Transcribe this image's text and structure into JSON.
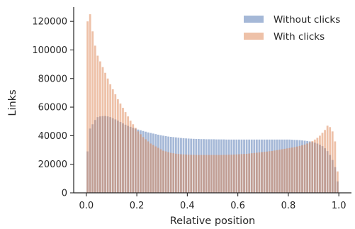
{
  "chart_data": {
    "type": "bar",
    "title": "",
    "xlabel": "Relative position",
    "ylabel": "Links",
    "xlim": [
      -0.05,
      1.05
    ],
    "ylim": [
      0,
      130000
    ],
    "xticks": [
      0.0,
      0.2,
      0.4,
      0.6,
      0.8,
      1.0
    ],
    "xtick_labels": [
      "0.0",
      "0.2",
      "0.4",
      "0.6",
      "0.8",
      "1.0"
    ],
    "yticks": [
      0,
      20000,
      40000,
      60000,
      80000,
      100000,
      120000
    ],
    "ytick_labels": [
      "0",
      "20000",
      "40000",
      "60000",
      "80000",
      "100000",
      "120000"
    ],
    "grid": false,
    "legend_position": "top-right",
    "bins": 100,
    "bin_range": [
      0,
      1
    ],
    "series": [
      {
        "name": "Without clicks",
        "color": "#4c72b0",
        "alpha": 0.5,
        "values": [
          29000,
          45000,
          48000,
          51000,
          53000,
          53500,
          53700,
          53800,
          53500,
          53000,
          52200,
          51400,
          50500,
          49600,
          48600,
          47700,
          46900,
          46200,
          45500,
          44900,
          44300,
          43800,
          43300,
          42800,
          42300,
          41900,
          41500,
          41100,
          40700,
          40300,
          40000,
          39700,
          39400,
          39200,
          39000,
          38800,
          38600,
          38400,
          38200,
          38100,
          38000,
          37900,
          37800,
          37700,
          37700,
          37600,
          37600,
          37500,
          37500,
          37500,
          37500,
          37400,
          37400,
          37400,
          37400,
          37300,
          37300,
          37300,
          37300,
          37300,
          37300,
          37300,
          37300,
          37300,
          37300,
          37300,
          37300,
          37300,
          37300,
          37300,
          37300,
          37300,
          37300,
          37300,
          37300,
          37300,
          37300,
          37300,
          37300,
          37300,
          37300,
          37200,
          37100,
          37000,
          36900,
          36700,
          36500,
          36300,
          36000,
          35600,
          35100,
          34500,
          33700,
          32700,
          31200,
          29200,
          26500,
          23000,
          18000,
          8000
        ]
      },
      {
        "name": "With clicks",
        "color": "#dd8452",
        "alpha": 0.5,
        "values": [
          120000,
          125000,
          113000,
          103000,
          96000,
          92000,
          88000,
          84000,
          80000,
          76000,
          72500,
          69000,
          65500,
          62500,
          59500,
          56500,
          53500,
          50500,
          48000,
          45500,
          43000,
          41000,
          39000,
          37500,
          36000,
          34500,
          33500,
          32500,
          31500,
          30500,
          29500,
          29000,
          28500,
          28000,
          27700,
          27400,
          27200,
          27000,
          26900,
          26800,
          26700,
          26600,
          26600,
          26500,
          26500,
          26500,
          26500,
          26500,
          26500,
          26500,
          26500,
          26500,
          26500,
          26500,
          26600,
          26600,
          26700,
          26700,
          26800,
          26900,
          27000,
          27100,
          27200,
          27300,
          27500,
          27700,
          27900,
          28100,
          28300,
          28500,
          28700,
          28900,
          29100,
          29300,
          29600,
          29900,
          30200,
          30500,
          30800,
          31100,
          31400,
          31700,
          32000,
          32400,
          32800,
          33300,
          33800,
          34500,
          35300,
          36200,
          37300,
          38500,
          40000,
          42000,
          44000,
          47000,
          46000,
          43000,
          36000,
          15000
        ]
      }
    ]
  }
}
